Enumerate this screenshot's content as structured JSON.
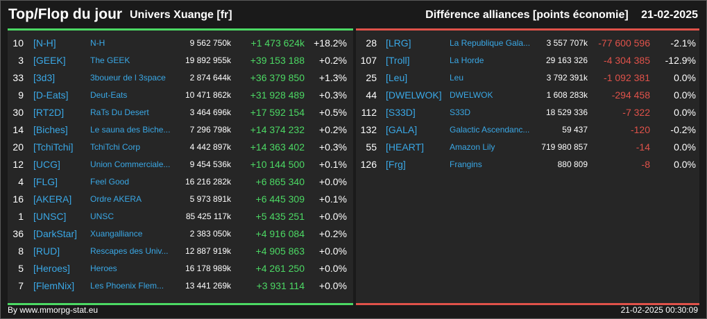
{
  "header": {
    "title": "Top/Flop du jour",
    "subtitle": "Univers Xuange [fr]",
    "metric": "Différence alliances [points économie]",
    "date": "21-02-2025"
  },
  "top": [
    {
      "rank": "10",
      "tag": "[N-H]",
      "name": "N-H",
      "points": "9 562 750k",
      "diff": "+1 473 624k",
      "pct": "+18.2%"
    },
    {
      "rank": "3",
      "tag": "[GEEK]",
      "name": "The GEEK",
      "points": "19 892 955k",
      "diff": "+39 153 188",
      "pct": "+0.2%"
    },
    {
      "rank": "33",
      "tag": "[3d3]",
      "name": "3boueur de l 3space",
      "points": "2 874 644k",
      "diff": "+36 379 850",
      "pct": "+1.3%"
    },
    {
      "rank": "9",
      "tag": "[D-Eats]",
      "name": "Deut-Eats",
      "points": "10 471 862k",
      "diff": "+31 928 489",
      "pct": "+0.3%"
    },
    {
      "rank": "30",
      "tag": "[RT2D]",
      "name": "RaTs Du Desert",
      "points": "3 464 696k",
      "diff": "+17 592 154",
      "pct": "+0.5%"
    },
    {
      "rank": "14",
      "tag": "[Biches]",
      "name": "Le sauna des Biche...",
      "points": "7 296 798k",
      "diff": "+14 374 232",
      "pct": "+0.2%"
    },
    {
      "rank": "20",
      "tag": "[TchiTchi]",
      "name": "TchiTchi Corp",
      "points": "4 442 897k",
      "diff": "+14 363 402",
      "pct": "+0.3%"
    },
    {
      "rank": "12",
      "tag": "[UCG]",
      "name": "Union Commerciale...",
      "points": "9 454 536k",
      "diff": "+10 144 500",
      "pct": "+0.1%"
    },
    {
      "rank": "4",
      "tag": "[FLG]",
      "name": "Feel Good",
      "points": "16 216 282k",
      "diff": "+6 865 340",
      "pct": "+0.0%"
    },
    {
      "rank": "16",
      "tag": "[AKERA]",
      "name": "Ordre AKERA",
      "points": "5 973 891k",
      "diff": "+6 445 309",
      "pct": "+0.1%"
    },
    {
      "rank": "1",
      "tag": "[UNSC]",
      "name": "UNSC",
      "points": "85 425 117k",
      "diff": "+5 435 251",
      "pct": "+0.0%"
    },
    {
      "rank": "36",
      "tag": "[DarkStar]",
      "name": "Xuangalliance",
      "points": "2 383 050k",
      "diff": "+4 916 084",
      "pct": "+0.2%"
    },
    {
      "rank": "8",
      "tag": "[RUD]",
      "name": "Rescapes des Univ...",
      "points": "12 887 919k",
      "diff": "+4 905 863",
      "pct": "+0.0%"
    },
    {
      "rank": "5",
      "tag": "[Heroes]",
      "name": "Heroes",
      "points": "16 178 989k",
      "diff": "+4 261 250",
      "pct": "+0.0%"
    },
    {
      "rank": "7",
      "tag": "[FlemNix]",
      "name": "Les Phoenix Flem...",
      "points": "13 441 269k",
      "diff": "+3 931 114",
      "pct": "+0.0%"
    }
  ],
  "flop": [
    {
      "rank": "28",
      "tag": "[LRG]",
      "name": "La Republique Gala...",
      "points": "3 557 707k",
      "diff": "-77 600 596",
      "pct": "-2.1%"
    },
    {
      "rank": "107",
      "tag": "[Troll]",
      "name": "La Horde",
      "points": "29 163 326",
      "diff": "-4 304 385",
      "pct": "-12.9%"
    },
    {
      "rank": "25",
      "tag": "[Leu]",
      "name": "Leu",
      "points": "3 792 391k",
      "diff": "-1 092 381",
      "pct": "0.0%"
    },
    {
      "rank": "44",
      "tag": "[DWELWOK]",
      "name": "DWELWOK",
      "points": "1 608 283k",
      "diff": "-294 458",
      "pct": "0.0%"
    },
    {
      "rank": "112",
      "tag": "[S33D]",
      "name": "S33D",
      "points": "18 529 336",
      "diff": "-7 322",
      "pct": "0.0%"
    },
    {
      "rank": "132",
      "tag": "[GALA]",
      "name": "Galactic Ascendanc...",
      "points": "59 437",
      "diff": "-120",
      "pct": "-0.2%"
    },
    {
      "rank": "55",
      "tag": "[HEART]",
      "name": "Amazon Lily",
      "points": "719 980 857",
      "diff": "-14",
      "pct": "0.0%"
    },
    {
      "rank": "126",
      "tag": "[Frg]",
      "name": "Frangins",
      "points": "880 809",
      "diff": "-8",
      "pct": "0.0%"
    }
  ],
  "footer": {
    "source": "By www.mmorpg-stat.eu",
    "timestamp": "21-02-2025 00:30:09"
  },
  "colors": {
    "positive": "#4cd964",
    "negative": "#e0524a",
    "link": "#3aa8e6",
    "panel": "#262626",
    "background": "#1a1a1a"
  }
}
